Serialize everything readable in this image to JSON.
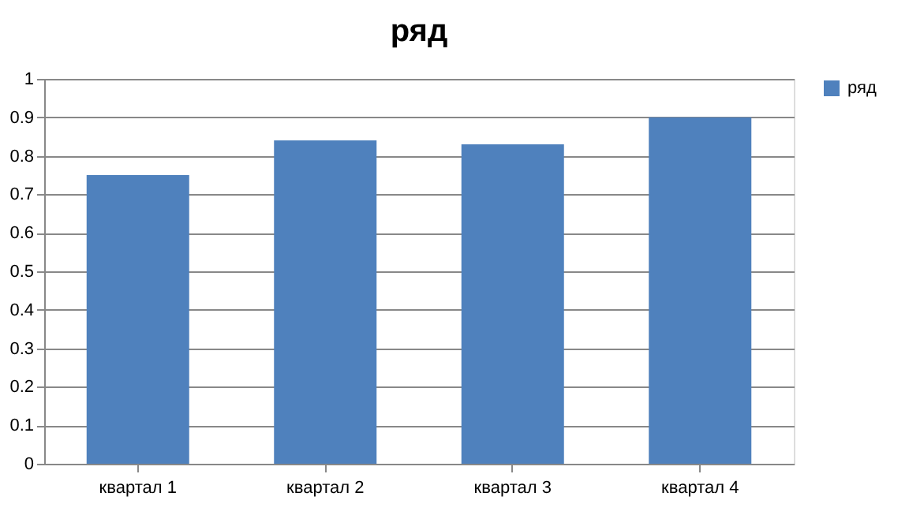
{
  "chart_data": {
    "type": "bar",
    "title": "ряд",
    "categories": [
      "квартал 1",
      "квартал 2",
      "квартал 3",
      "квартал 4"
    ],
    "series": [
      {
        "name": "ряд",
        "color": "#4f81bd",
        "values": [
          0.75,
          0.84,
          0.83,
          0.9
        ]
      }
    ],
    "ylim": [
      0,
      1
    ],
    "yticks": [
      0,
      0.1,
      0.2,
      0.3,
      0.4,
      0.5,
      0.6,
      0.7,
      0.8,
      0.9,
      1
    ],
    "grid": "y",
    "legend": "right"
  }
}
